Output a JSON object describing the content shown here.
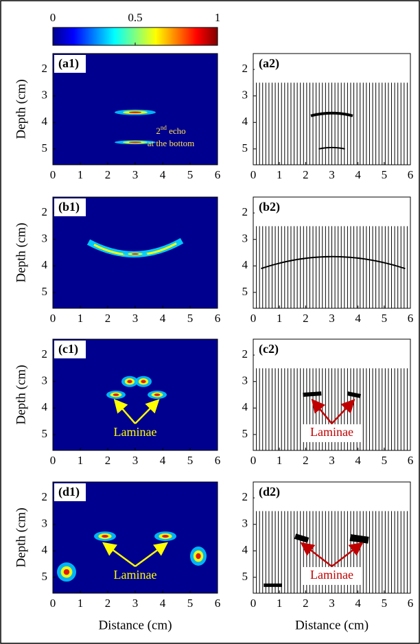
{
  "chart_data": [
    {
      "type": "colorbar",
      "xlim": [
        0,
        1
      ],
      "xticks": [
        0,
        0.5,
        1
      ]
    },
    {
      "type": "heatmap",
      "panel_label": "(a1)",
      "xlim": [
        0,
        6
      ],
      "ylim": [
        1.4,
        5.6
      ],
      "xticks": [
        0,
        1,
        2,
        3,
        4,
        5,
        6
      ],
      "yticks": [
        2,
        3,
        4,
        5
      ],
      "ylabel": "Depth (cm)",
      "annotation": {
        "base": "2",
        "sup": "nd",
        "rest": " echo",
        "line2": "at the bottom"
      },
      "annotation_color": "#ffe14d"
    },
    {
      "type": "waveform",
      "panel_label": "(a2)",
      "xlim": [
        0,
        6
      ],
      "ylim": [
        1.4,
        5.6
      ],
      "xticks": [
        0,
        1,
        2,
        3,
        4,
        5,
        6
      ],
      "yticks": [
        2,
        3,
        4,
        5
      ]
    },
    {
      "type": "heatmap",
      "panel_label": "(b1)",
      "xlim": [
        0,
        6
      ],
      "ylim": [
        1.4,
        5.6
      ],
      "xticks": [
        0,
        1,
        2,
        3,
        4,
        5,
        6
      ],
      "yticks": [
        2,
        3,
        4,
        5
      ],
      "ylabel": "Depth (cm)"
    },
    {
      "type": "waveform",
      "panel_label": "(b2)",
      "xlim": [
        0,
        6
      ],
      "ylim": [
        1.4,
        5.6
      ],
      "xticks": [
        0,
        1,
        2,
        3,
        4,
        5,
        6
      ],
      "yticks": [
        2,
        3,
        4,
        5
      ]
    },
    {
      "type": "heatmap",
      "panel_label": "(c1)",
      "xlim": [
        0,
        6
      ],
      "ylim": [
        1.4,
        5.6
      ],
      "xticks": [
        0,
        1,
        2,
        3,
        4,
        5,
        6
      ],
      "yticks": [
        2,
        3,
        4,
        5
      ],
      "ylabel": "Depth (cm)",
      "annotation": "Laminae",
      "annotation_color": "#ffff00"
    },
    {
      "type": "waveform",
      "panel_label": "(c2)",
      "xlim": [
        0,
        6
      ],
      "ylim": [
        1.4,
        5.6
      ],
      "xticks": [
        0,
        1,
        2,
        3,
        4,
        5,
        6
      ],
      "yticks": [
        2,
        3,
        4,
        5
      ],
      "annotation": "Laminae",
      "annotation_color": "#c00000"
    },
    {
      "type": "heatmap",
      "panel_label": "(d1)",
      "xlim": [
        0,
        6
      ],
      "ylim": [
        1.4,
        5.6
      ],
      "xticks": [
        0,
        1,
        2,
        3,
        4,
        5,
        6
      ],
      "yticks": [
        2,
        3,
        4,
        5
      ],
      "ylabel": "Depth (cm)",
      "xlabel": "Distance (cm)",
      "annotation": "Laminae",
      "annotation_color": "#ffff00"
    },
    {
      "type": "waveform",
      "panel_label": "(d2)",
      "xlim": [
        0,
        6
      ],
      "ylim": [
        1.4,
        5.6
      ],
      "xticks": [
        0,
        1,
        2,
        3,
        4,
        5,
        6
      ],
      "yticks": [
        2,
        3,
        4,
        5
      ],
      "xlabel": "Distance (cm)",
      "annotation": "Laminae",
      "annotation_color": "#c00000"
    }
  ]
}
